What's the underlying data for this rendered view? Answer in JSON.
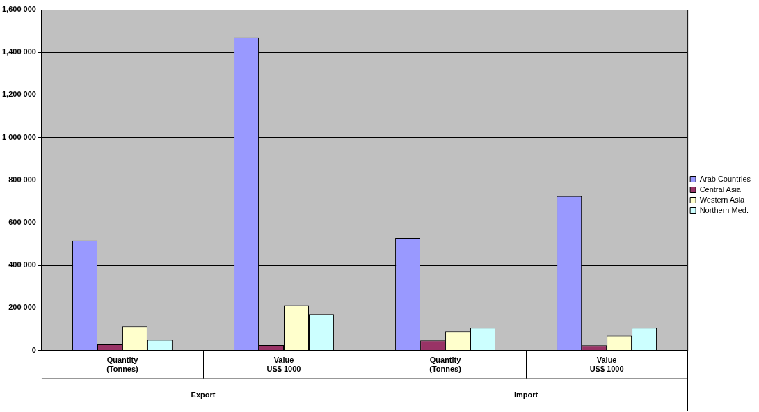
{
  "chart_data": {
    "type": "bar",
    "categories": [
      "Quantity (Tonnes)",
      "Value US$ 1000",
      "Quantity (Tonnes)",
      "Value US$ 1000"
    ],
    "series": [
      {
        "name": "Arab Countries",
        "color": "#9999ff",
        "values": [
          516000,
          1470000,
          528000,
          725000
        ]
      },
      {
        "name": "Central Asia",
        "color": "#993366",
        "values": [
          28000,
          25000,
          47000,
          24000
        ]
      },
      {
        "name": "Western Asia",
        "color": "#ffffcc",
        "values": [
          112000,
          213000,
          89000,
          69000
        ]
      },
      {
        "name": "Northern Med.",
        "color": "#ccffff",
        "values": [
          49000,
          171000,
          106000,
          106000
        ]
      }
    ],
    "annotations": [
      "Export",
      "Import"
    ],
    "ylim": [
      0,
      1600000
    ],
    "yticks": [
      {
        "value": 0,
        "label": "0"
      },
      {
        "value": 200000,
        "label": "200 000"
      },
      {
        "value": 400000,
        "label": "400 000"
      },
      {
        "value": 600000,
        "label": "600 000"
      },
      {
        "value": 800000,
        "label": "800 000"
      },
      {
        "value": 1000000,
        "label": "1 000 000"
      },
      {
        "value": 1200000,
        "label": "1,200 000"
      },
      {
        "value": 1400000,
        "label": "1,400 000"
      },
      {
        "value": 1600000,
        "label": "1,600 000"
      }
    ],
    "grid": "y",
    "legend": "right"
  }
}
